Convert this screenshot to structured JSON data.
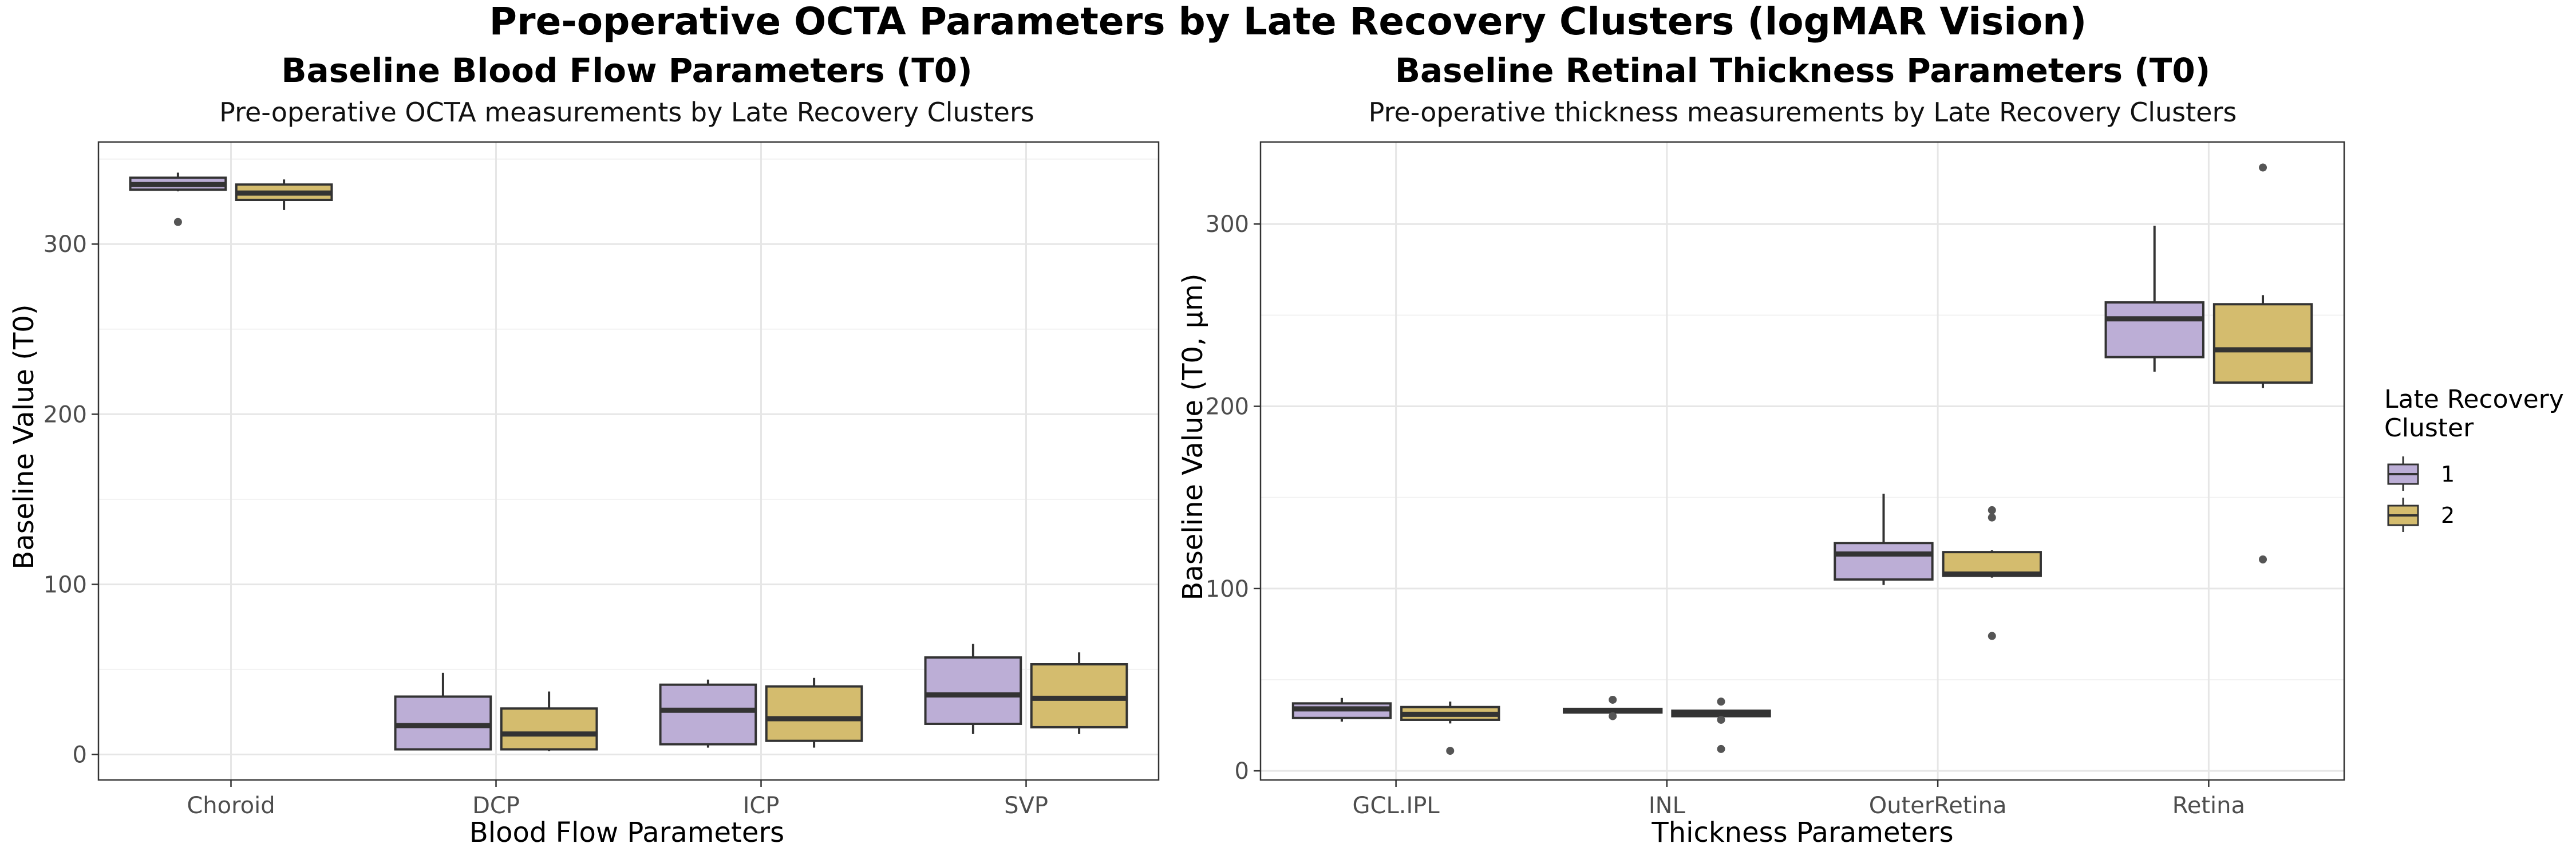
{
  "figure": {
    "title": "Pre-operative OCTA Parameters by Late Recovery Clusters (logMAR Vision)"
  },
  "colors": {
    "cluster1": "#bcaed6",
    "cluster2": "#d4bc6e",
    "outline": "#333333",
    "outlier": "#555555"
  },
  "legend": {
    "title_line1": "Late Recovery",
    "title_line2": "Cluster",
    "items": [
      "1",
      "2"
    ]
  },
  "chart_data": [
    {
      "type": "box",
      "title": "Baseline Blood Flow Parameters (T0)",
      "subtitle": "Pre-operative OCTA measurements by Late Recovery Clusters",
      "xlabel": "Blood Flow Parameters",
      "ylabel": "Baseline Value (T0)",
      "ylim": [
        -15,
        360
      ],
      "yticks": [
        0,
        100,
        200,
        300
      ],
      "yticks_minor": [
        50,
        150,
        250,
        350
      ],
      "categories": [
        "Choroid",
        "DCP",
        "ICP",
        "SVP"
      ],
      "series": [
        {
          "name": "1",
          "boxes": [
            {
              "q1": 332,
              "median": 335,
              "q3": 339,
              "whisker_low": 331,
              "whisker_high": 342,
              "outliers": [
                313
              ]
            },
            {
              "q1": 3,
              "median": 17,
              "q3": 34,
              "whisker_low": 3,
              "whisker_high": 48,
              "outliers": []
            },
            {
              "q1": 6,
              "median": 26,
              "q3": 41,
              "whisker_low": 4,
              "whisker_high": 44,
              "outliers": []
            },
            {
              "q1": 18,
              "median": 35,
              "q3": 57,
              "whisker_low": 12,
              "whisker_high": 65,
              "outliers": []
            }
          ]
        },
        {
          "name": "2",
          "boxes": [
            {
              "q1": 326,
              "median": 330,
              "q3": 335,
              "whisker_low": 320,
              "whisker_high": 338,
              "outliers": []
            },
            {
              "q1": 3,
              "median": 12,
              "q3": 27,
              "whisker_low": 2,
              "whisker_high": 37,
              "outliers": []
            },
            {
              "q1": 8,
              "median": 21,
              "q3": 40,
              "whisker_low": 4,
              "whisker_high": 45,
              "outliers": []
            },
            {
              "q1": 16,
              "median": 33,
              "q3": 53,
              "whisker_low": 12,
              "whisker_high": 60,
              "outliers": []
            }
          ]
        }
      ]
    },
    {
      "type": "box",
      "title": "Baseline Retinal Thickness Parameters (T0)",
      "subtitle": "Pre-operative thickness measurements by Late Recovery Clusters",
      "xlabel": "Thickness Parameters",
      "ylabel": "Baseline Value (T0, µm)",
      "ylim": [
        -5,
        345
      ],
      "yticks": [
        0,
        100,
        200,
        300
      ],
      "yticks_minor": [
        50,
        150,
        250
      ],
      "categories": [
        "GCL.IPL",
        "INL",
        "OuterRetina",
        "Retina"
      ],
      "series": [
        {
          "name": "1",
          "boxes": [
            {
              "q1": 29,
              "median": 34,
              "q3": 37,
              "whisker_low": 27,
              "whisker_high": 40,
              "outliers": []
            },
            {
              "q1": 32,
              "median": 33,
              "q3": 34,
              "whisker_low": 32,
              "whisker_high": 34,
              "outliers": [
                39,
                30
              ]
            },
            {
              "q1": 105,
              "median": 119,
              "q3": 125,
              "whisker_low": 102,
              "whisker_high": 152,
              "outliers": []
            },
            {
              "q1": 227,
              "median": 248,
              "q3": 257,
              "whisker_low": 219,
              "whisker_high": 299,
              "outliers": []
            }
          ]
        },
        {
          "name": "2",
          "boxes": [
            {
              "q1": 28,
              "median": 31,
              "q3": 35,
              "whisker_low": 26,
              "whisker_high": 38,
              "outliers": [
                11
              ]
            },
            {
              "q1": 30,
              "median": 32,
              "q3": 33,
              "whisker_low": 30,
              "whisker_high": 33,
              "outliers": [
                38,
                28,
                12
              ]
            },
            {
              "q1": 107,
              "median": 108,
              "q3": 120,
              "whisker_low": 106,
              "whisker_high": 121,
              "outliers": [
                143,
                139,
                74
              ]
            },
            {
              "q1": 213,
              "median": 231,
              "q3": 256,
              "whisker_low": 210,
              "whisker_high": 261,
              "outliers": [
                331,
                116
              ]
            }
          ]
        }
      ]
    }
  ]
}
